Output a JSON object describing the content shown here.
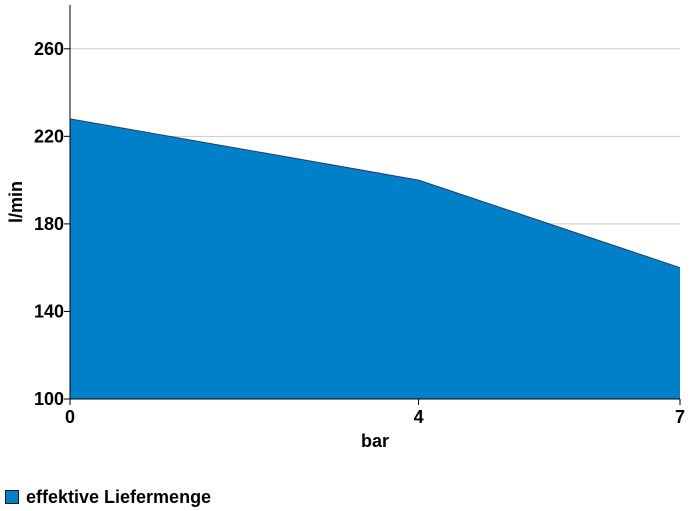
{
  "chart_data": {
    "type": "area",
    "x": [
      0,
      4,
      7
    ],
    "series": [
      {
        "name": "effektive Liefermenge",
        "values": [
          228,
          200,
          160
        ]
      }
    ],
    "xlabel": "bar",
    "ylabel": "l/min",
    "xlim": [
      0,
      7
    ],
    "ylim": [
      100,
      280
    ],
    "xticks": [
      0,
      4,
      7
    ],
    "yticks": [
      100,
      140,
      180,
      220,
      260
    ],
    "grid": true,
    "legend": "bottom-left",
    "colors": {
      "fill": "#0080c8",
      "grid": "#c8c8c8",
      "axis": "#000000"
    }
  }
}
